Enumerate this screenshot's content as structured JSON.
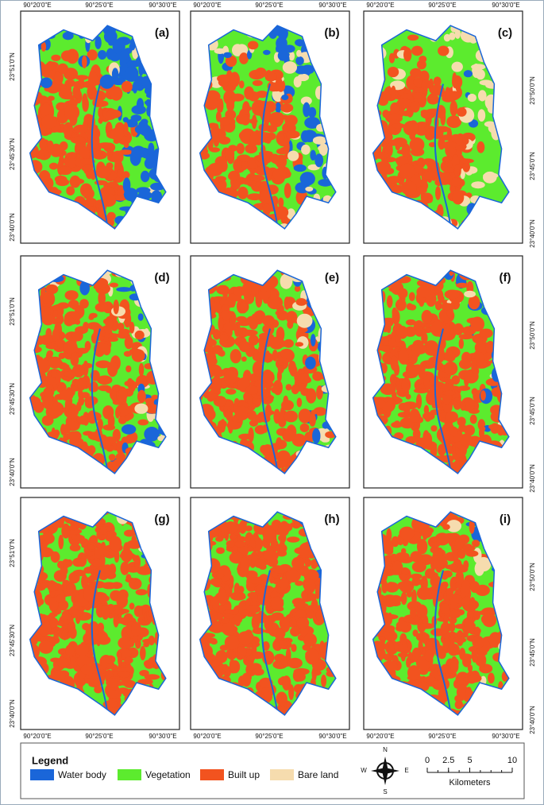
{
  "panels": [
    {
      "label": "(a)"
    },
    {
      "label": "(b)"
    },
    {
      "label": "(c)"
    },
    {
      "label": "(d)"
    },
    {
      "label": "(e)"
    },
    {
      "label": "(f)"
    },
    {
      "label": "(g)"
    },
    {
      "label": "(h)"
    },
    {
      "label": "(i)"
    }
  ],
  "grid_labels": {
    "top": [
      [
        "90°20'0\"E",
        "90°25'0\"E",
        "90°30'0\"E"
      ],
      [
        "90°20'0\"E",
        "90°25'0\"E",
        "90°30'0\"E"
      ],
      [
        "90°20'0\"E",
        "90°25'0\"E",
        "90°30'0\"E"
      ]
    ],
    "bottom": [
      [
        "90°20'0\"E",
        "90°25'0\"E",
        "90°30'0\"E"
      ],
      [
        "90°20'0\"E",
        "90°25'0\"E",
        "90°30'0\"E"
      ],
      [
        "90°20'0\"E",
        "90°25'0\"E",
        "90°30'0\"E"
      ]
    ],
    "left": [
      [
        "23°51'0\"N",
        "23°45'30\"N",
        "23°40'0\"N"
      ],
      [
        "23°51'0\"N",
        "23°45'30\"N",
        "23°40'0\"N"
      ],
      [
        "23°51'0\"N",
        "23°45'30\"N",
        "23°40'0\"N"
      ]
    ],
    "right": [
      [
        "23°50'0\"N",
        "23°45'0\"N",
        "23°40'0\"N"
      ],
      [
        "23°50'0\"N",
        "23°45'0\"N",
        "23°40'0\"N"
      ],
      [
        "23°50'0\"N",
        "23°45'0\"N",
        "23°40'0\"N"
      ]
    ]
  },
  "legend": {
    "title": "Legend",
    "items": [
      {
        "label": "Water body",
        "color": "#1a66d9"
      },
      {
        "label": "Vegetation",
        "color": "#5ceb2e"
      },
      {
        "label": "Built up",
        "color": "#f2531f"
      },
      {
        "label": "Bare land",
        "color": "#f6dcae"
      }
    ]
  },
  "north_arrow": {
    "n": "N",
    "s": "S",
    "e": "E",
    "w": "W"
  },
  "scale_bar": {
    "ticks": [
      0,
      2.5,
      5,
      10
    ],
    "unit": "Kilometers"
  }
}
